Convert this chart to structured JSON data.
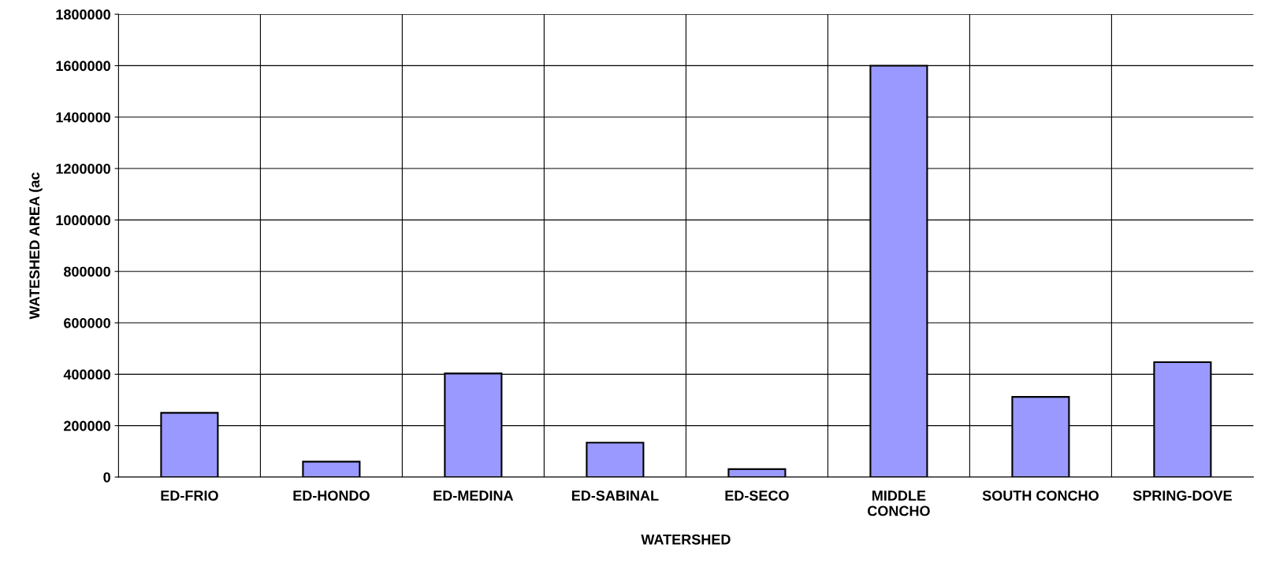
{
  "chart_data": {
    "type": "bar",
    "xlabel": "WATERSHED",
    "ylabel": "WATESHED AREA (ac",
    "categories": [
      "ED-FRIO",
      "ED-HONDO",
      "ED-MEDINA",
      "ED-SABINAL",
      "ED-SECO",
      "MIDDLE\nCONCHO",
      "SOUTH CONCHO",
      "SPRING-DOVE"
    ],
    "values": [
      250000,
      60000,
      403000,
      134000,
      31000,
      1600000,
      312000,
      447000
    ],
    "color": "#9999ff",
    "ylim": [
      0,
      1800000
    ],
    "yticks": [
      0,
      200000,
      400000,
      600000,
      800000,
      1000000,
      1200000,
      1400000,
      1600000,
      1800000
    ],
    "grid": true,
    "legend": false
  }
}
